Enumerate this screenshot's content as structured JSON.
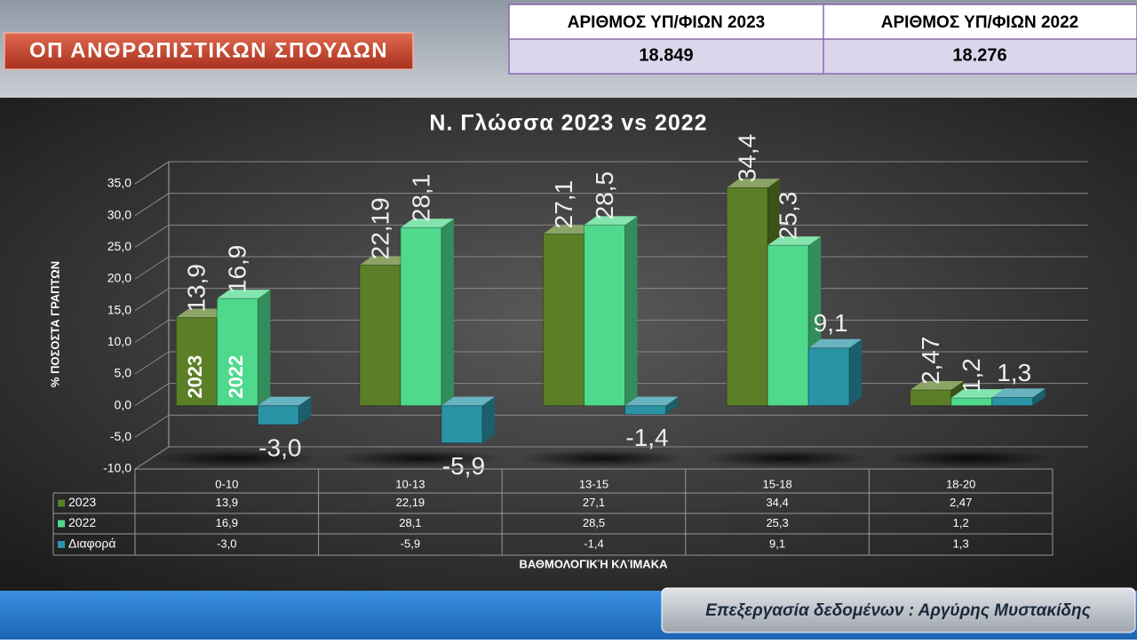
{
  "header": {
    "title": "ΟΠ ΑΝΘΡΩΠΙΣΤΙΚΩΝ ΣΠΟΥΔΩΝ"
  },
  "stats": {
    "headers": [
      "ΑΡΙΘΜΟΣ ΥΠ/ΦΙΩΝ 2023",
      "ΑΡΙΘΜΟΣ ΥΠ/ΦΙΩΝ 2022"
    ],
    "values": [
      "18.849",
      "18.276"
    ]
  },
  "chart_data": {
    "type": "bar",
    "title": "Ν. Γλώσσα 2023 vs 2022",
    "y_label": "% ΠΟΣΟΣΤΑ ΓΡΑΠΤΩΝ",
    "x_label": "ΒΑΘΜΟΛΟΓΙΚΉ ΚΛΊΜΑΚΑ",
    "categories": [
      "0-10",
      "10-13",
      "13-15",
      "15-18",
      "18-20"
    ],
    "series": [
      {
        "name": "2023",
        "color": "#5b7f26",
        "values": [
          13.9,
          22.19,
          27.1,
          34.4,
          2.47
        ],
        "value_labels": [
          "13,9",
          "22,19",
          "27,1",
          "34,4",
          "2,47"
        ]
      },
      {
        "name": "2022",
        "color": "#4fd98c",
        "values": [
          16.9,
          28.1,
          28.5,
          25.3,
          1.2
        ],
        "value_labels": [
          "16,9",
          "28,1",
          "28,5",
          "25,3",
          "1,2"
        ]
      },
      {
        "name": "Διαφορά",
        "color": "#2a93a6",
        "values": [
          -3.0,
          -5.9,
          -1.4,
          9.1,
          1.3
        ],
        "value_labels": [
          "-3,0",
          "-5,9",
          "-1,4",
          "9,1",
          "1,3"
        ]
      }
    ],
    "ylim": [
      -10,
      35
    ],
    "yticks": [
      {
        "value": -10,
        "label": "-10,0"
      },
      {
        "value": -5,
        "label": "-5,0"
      },
      {
        "value": 0,
        "label": "0,0"
      },
      {
        "value": 5,
        "label": "5,0"
      },
      {
        "value": 10,
        "label": "10,0"
      },
      {
        "value": 15,
        "label": "15,0"
      },
      {
        "value": 20,
        "label": "20,0"
      },
      {
        "value": 25,
        "label": "25,0"
      },
      {
        "value": 30,
        "label": "30,0"
      },
      {
        "value": 35,
        "label": "35,0"
      }
    ],
    "grid": true
  },
  "footer": {
    "credit": "Επεξεργασία δεδομένων : Αργύρης Μυστακίδης"
  }
}
